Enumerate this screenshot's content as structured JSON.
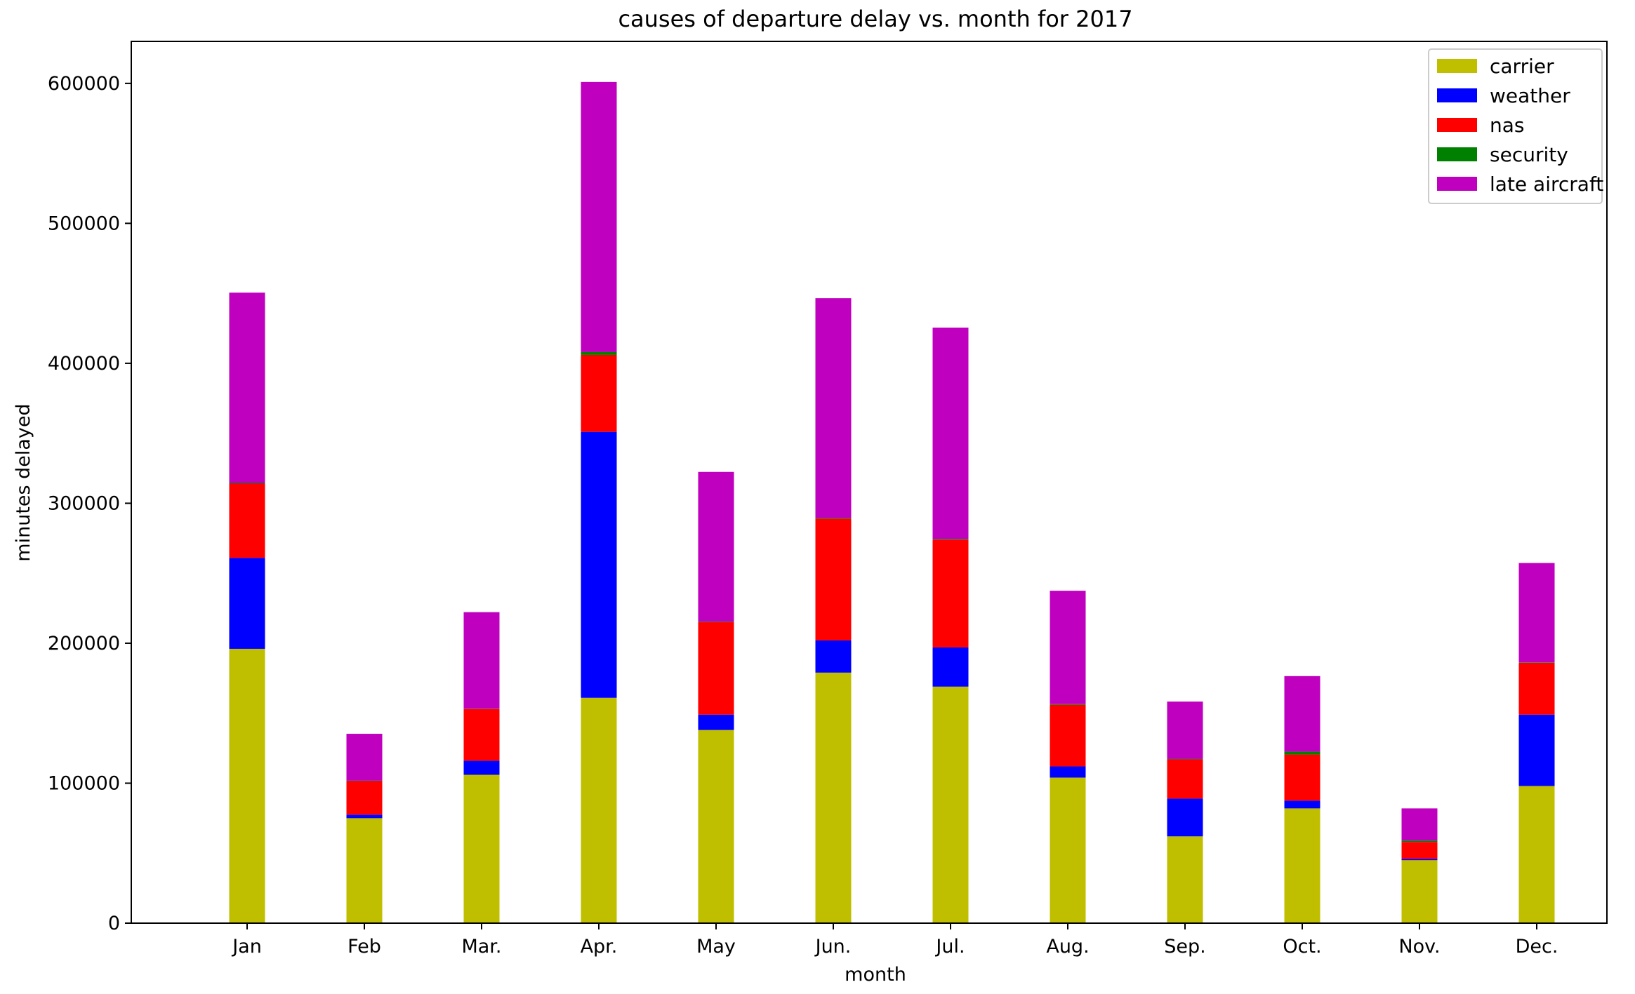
{
  "chart_data": {
    "type": "bar",
    "stacked": true,
    "title": "causes of departure delay vs. month for 2017",
    "xlabel": "month",
    "ylabel": "minutes delayed",
    "categories": [
      "Jan",
      "Feb",
      "Mar.",
      "Apr.",
      "May",
      "Jun.",
      "Jul.",
      "Aug.",
      "Sep.",
      "Oct.",
      "Nov.",
      "Dec."
    ],
    "ylim": [
      0,
      630000
    ],
    "yticks": [
      0,
      100000,
      200000,
      300000,
      400000,
      500000,
      600000
    ],
    "ytick_labels": [
      "0",
      "100000",
      "200000",
      "300000",
      "400000",
      "500000",
      "600000"
    ],
    "grid": false,
    "legend_position": "top-right",
    "series": [
      {
        "name": "carrier",
        "color": "#bfbf00",
        "values": [
          196000,
          75000,
          106000,
          161000,
          138000,
          179000,
          169000,
          104000,
          62000,
          82000,
          45000,
          98000
        ]
      },
      {
        "name": "weather",
        "color": "#0000ff",
        "values": [
          65000,
          2500,
          10000,
          190000,
          11000,
          23000,
          28000,
          8000,
          27000,
          5500,
          1000,
          51000
        ]
      },
      {
        "name": "nas",
        "color": "#ff0000",
        "values": [
          53000,
          24000,
          37000,
          55000,
          66000,
          87000,
          77000,
          44000,
          28000,
          33000,
          12000,
          37000
        ]
      },
      {
        "name": "security",
        "color": "#008000",
        "values": [
          500,
          300,
          200,
          2000,
          400,
          500,
          500,
          500,
          300,
          2000,
          1000,
          300
        ]
      },
      {
        "name": "late aircraft",
        "color": "#bf00bf",
        "values": [
          136000,
          33500,
          69000,
          193000,
          107000,
          157000,
          151000,
          81000,
          41000,
          54000,
          23000,
          71000
        ]
      }
    ]
  }
}
